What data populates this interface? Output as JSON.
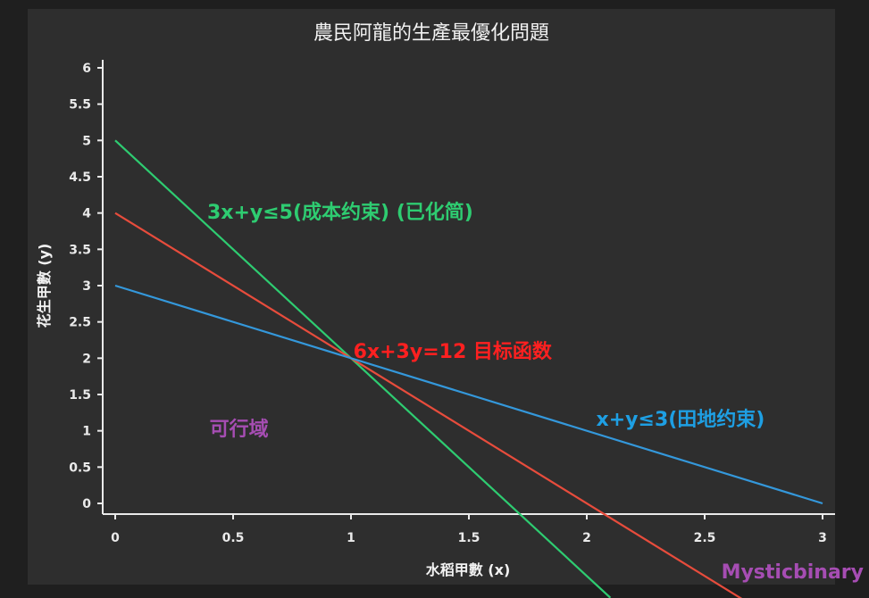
{
  "chart_data": {
    "type": "line",
    "title": "農民阿龍的生產最優化問題",
    "xlabel": "水稻甲數 (x)",
    "ylabel": "花生甲數 (y)",
    "xlim": [
      -0.05,
      3.05
    ],
    "ylim": [
      -0.1,
      6.1
    ],
    "xticks": [
      0,
      0.5,
      1,
      1.5,
      2,
      2.5,
      3
    ],
    "xtick_labels": [
      "0",
      "0.5",
      "1",
      "1.5",
      "2",
      "2.5",
      "3"
    ],
    "yticks": [
      0,
      0.5,
      1,
      1.5,
      2,
      2.5,
      3,
      3.5,
      4,
      4.5,
      5,
      5.5,
      6
    ],
    "ytick_labels": [
      "0",
      "0.5",
      "1",
      "1.5",
      "2",
      "2.5",
      "3",
      "3.5",
      "4",
      "4.5",
      "5",
      "5.5",
      "6"
    ],
    "grid": false,
    "series": [
      {
        "equation": "y = 5 - 3x",
        "color": "#2ecc71",
        "x": [
          0,
          2.1
        ],
        "y": [
          5,
          -1.3
        ]
      },
      {
        "equation": "y = 4 - 2x",
        "color": "#e74c3c",
        "x": [
          0,
          2.7
        ],
        "y": [
          4,
          -1.4
        ]
      },
      {
        "equation": "y = 3 - x",
        "color": "#3498db",
        "x": [
          0,
          3
        ],
        "y": [
          3,
          0
        ]
      }
    ],
    "annotations": [
      {
        "text": "3x+y≤5(成本约束) (已化简)",
        "x": 0.39,
        "y": 4.02,
        "color": "#2ecc71"
      },
      {
        "text": "6x+3y=12 目标函数",
        "x": 1.01,
        "y": 2.1,
        "color": "#ff2020"
      },
      {
        "text": "x+y≤3(田地约束)",
        "x": 2.04,
        "y": 1.17,
        "color": "#1e9fe3"
      },
      {
        "text": "可行域",
        "x": 0.4,
        "y": 1.03,
        "color": "#a64db3"
      }
    ]
  },
  "watermark": {
    "text": "Mysticbinary",
    "color": "#a64db3"
  }
}
